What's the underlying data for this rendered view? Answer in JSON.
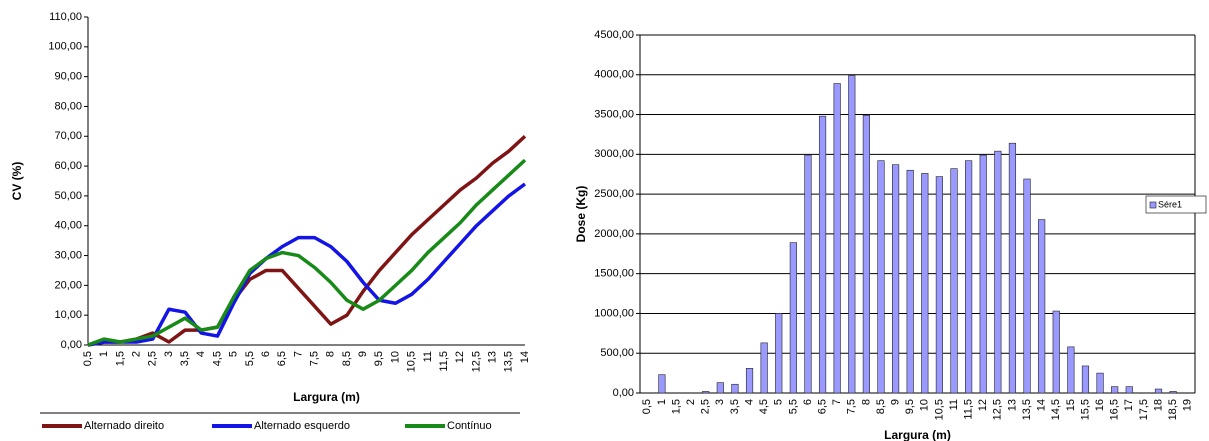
{
  "chart_data": [
    {
      "type": "line",
      "x_label": "Largura (m)",
      "y_label": "CV (%)",
      "categories": [
        "0,5",
        "1",
        "1,5",
        "2",
        "2,5",
        "3",
        "3,5",
        "4",
        "4,5",
        "5",
        "5,5",
        "6",
        "6,5",
        "7",
        "7,5",
        "8",
        "8,5",
        "9",
        "9,5",
        "10",
        "10,5",
        "11",
        "11,5",
        "12",
        "12,5",
        "13",
        "13,5",
        "14"
      ],
      "series": [
        {
          "name": "Alternado direito",
          "color": "#7f1414",
          "values": [
            0,
            1,
            1,
            2,
            4,
            1,
            5,
            5,
            6,
            15,
            22,
            25,
            25,
            19,
            13,
            7,
            10,
            18,
            25,
            31,
            37,
            42,
            47,
            52,
            56,
            61,
            65,
            70
          ]
        },
        {
          "name": "Alternado esquerdo",
          "color": "#1414e6",
          "values": [
            0,
            1,
            1,
            1,
            2,
            12,
            11,
            4,
            3,
            14,
            24,
            29,
            33,
            36,
            36,
            33,
            28,
            21,
            15,
            14,
            17,
            22,
            28,
            34,
            40,
            45,
            50,
            54
          ]
        },
        {
          "name": "Contínuo",
          "color": "#178a17",
          "values": [
            0,
            2,
            1,
            2,
            3,
            6,
            9,
            5,
            6,
            16,
            25,
            29,
            31,
            30,
            26,
            21,
            15,
            12,
            15,
            20,
            25,
            31,
            36,
            41,
            47,
            52,
            57,
            62
          ]
        }
      ],
      "ylim": [
        0,
        110
      ],
      "yticks": [
        {
          "value": 0,
          "label": "0,00"
        },
        {
          "value": 10,
          "label": "10,00"
        },
        {
          "value": 20,
          "label": "20,00"
        },
        {
          "value": 30,
          "label": "30,00"
        },
        {
          "value": 40,
          "label": "40,00"
        },
        {
          "value": 50,
          "label": "50,00"
        },
        {
          "value": 60,
          "label": "60,00"
        },
        {
          "value": 70,
          "label": "70,00"
        },
        {
          "value": 80,
          "label": "80,00"
        },
        {
          "value": 90,
          "label": "90,00"
        },
        {
          "value": 100,
          "label": "100,00"
        },
        {
          "value": 110,
          "label": "110,00"
        }
      ],
      "grid": false,
      "legend": "bottom"
    },
    {
      "type": "bar",
      "x_label": "Largura (m)",
      "y_label": "Dose (Kg)",
      "categories": [
        "0,5",
        "1",
        "1,5",
        "2",
        "2,5",
        "3",
        "3,5",
        "4",
        "4,5",
        "5",
        "5,5",
        "6",
        "6,5",
        "7",
        "7,5",
        "8",
        "8,5",
        "9",
        "9,5",
        "10",
        "10,5",
        "11",
        "11,5",
        "12",
        "12,5",
        "13",
        "13,5",
        "14",
        "14,5",
        "15",
        "15,5",
        "16",
        "16,5",
        "17",
        "17,5",
        "18",
        "18,5",
        "19"
      ],
      "series": [
        {
          "name": "Sére1",
          "color": "#9999ff",
          "values": [
            0,
            230,
            0,
            0,
            20,
            130,
            110,
            310,
            630,
            1000,
            1890,
            2990,
            3480,
            3890,
            3990,
            3490,
            2920,
            2870,
            2800,
            2760,
            2720,
            2820,
            2920,
            2990,
            3040,
            3140,
            2690,
            2180,
            1030,
            580,
            340,
            250,
            80,
            80,
            0,
            50,
            20,
            0
          ]
        }
      ],
      "ylim": [
        0,
        4500
      ],
      "yticks": [
        {
          "value": 0,
          "label": "0,00"
        },
        {
          "value": 500,
          "label": "500,00"
        },
        {
          "value": 1000,
          "label": "1000,00"
        },
        {
          "value": 1500,
          "label": "1500,00"
        },
        {
          "value": 2000,
          "label": "2000,00"
        },
        {
          "value": 2500,
          "label": "2500,00"
        },
        {
          "value": 3000,
          "label": "3000,00"
        },
        {
          "value": 3500,
          "label": "3500,00"
        },
        {
          "value": 4000,
          "label": "4000,00"
        },
        {
          "value": 4500,
          "label": "4500,00"
        }
      ],
      "grid": true,
      "legend": "right"
    }
  ]
}
